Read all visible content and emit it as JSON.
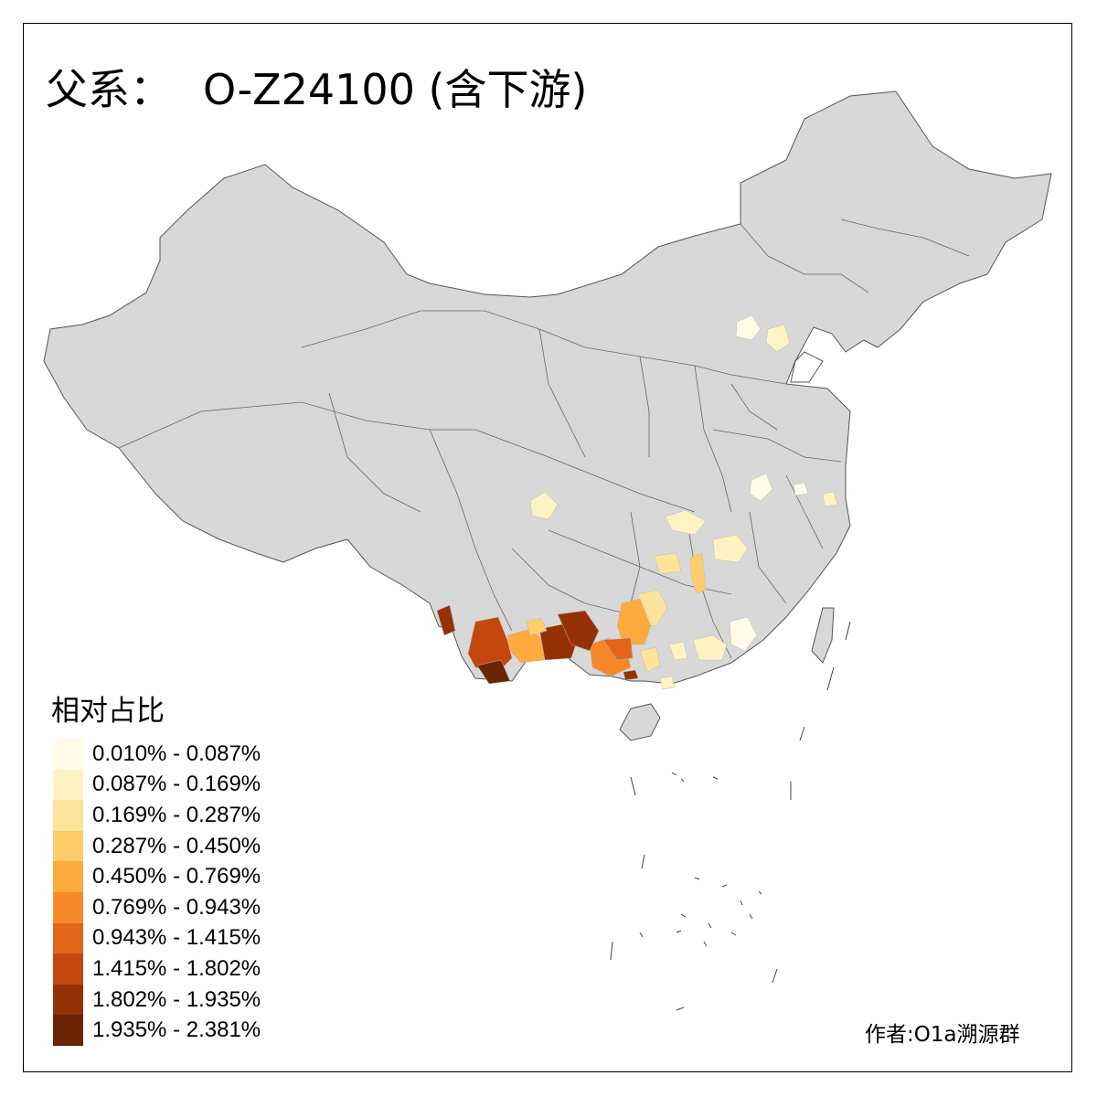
{
  "title": {
    "prefix": "父系：",
    "haplogroup": "O-Z24100 (含下游)"
  },
  "legend": {
    "title": "相对占比",
    "items": [
      {
        "label": "0.010% - 0.087%",
        "color": "#FFFBE6"
      },
      {
        "label": "0.087% - 0.169%",
        "color": "#FFF3C4"
      },
      {
        "label": "0.169% - 0.287%",
        "color": "#FEE39B"
      },
      {
        "label": "0.287% - 0.450%",
        "color": "#FECD6A"
      },
      {
        "label": "0.450% - 0.769%",
        "color": "#FDAA3E"
      },
      {
        "label": "0.769% - 0.943%",
        "color": "#F7882A"
      },
      {
        "label": "0.943% - 1.415%",
        "color": "#E2651A"
      },
      {
        "label": "1.415% - 1.802%",
        "color": "#C3470E"
      },
      {
        "label": "1.802% - 1.935%",
        "color": "#953105"
      },
      {
        "label": "1.935% - 2.381%",
        "color": "#6B2306"
      }
    ]
  },
  "map": {
    "base_color": "#D8D8D8",
    "border_color": "#555555"
  },
  "author": "作者:O1a溯源群"
}
